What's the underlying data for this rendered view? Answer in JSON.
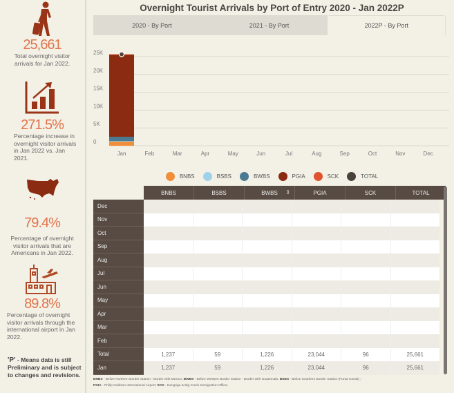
{
  "sidebar": {
    "stats": [
      {
        "icon": "traveler-luggage-icon",
        "value": "25,661",
        "desc": "Total overnight visitor arrivals for Jan 2022."
      },
      {
        "icon": "growth-chart-icon",
        "value": "271.5%",
        "desc": "Percentage increase in overnight visitor arrivals in Jan 2022 vs. Jan 2021."
      },
      {
        "icon": "usa-map-icon",
        "value": "79.4%",
        "desc": "Percentage of overnight visitor arrivals that are Americans in Jan 2022."
      },
      {
        "icon": "airport-icon",
        "value": "89.8%",
        "desc": "Percentage of overnight visitor arrivals through the international airport in Jan 2022."
      }
    ],
    "note_p": "'P'",
    "note_text": " - Means data is still Preliminary and is subject to changes and revisions."
  },
  "title": "Overnight Tourist Arrivals by Port of Entry 2020 - Jan 2022P",
  "tabs": [
    {
      "label": "2020 - By Port",
      "active": false
    },
    {
      "label": "2021 - By Port",
      "active": false
    },
    {
      "label": "2022P - By Port",
      "active": true
    }
  ],
  "colors": {
    "BNBS": "#f28e3a",
    "BSBS": "#9fd2ea",
    "BWBS": "#4b7b93",
    "PGIA": "#8b2b12",
    "SCK": "#e0532e",
    "TOTAL": "#4a413c"
  },
  "chart_data": {
    "type": "bar",
    "stacked": true,
    "categories": [
      "Jan",
      "Feb",
      "Mar",
      "Apr",
      "May",
      "Jun",
      "Jul",
      "Aug",
      "Sep",
      "Oct",
      "Nov",
      "Dec"
    ],
    "series": [
      {
        "name": "BNBS",
        "values": [
          1237,
          null,
          null,
          null,
          null,
          null,
          null,
          null,
          null,
          null,
          null,
          null
        ]
      },
      {
        "name": "BSBS",
        "values": [
          59,
          null,
          null,
          null,
          null,
          null,
          null,
          null,
          null,
          null,
          null,
          null
        ]
      },
      {
        "name": "BWBS",
        "values": [
          1226,
          null,
          null,
          null,
          null,
          null,
          null,
          null,
          null,
          null,
          null,
          null
        ]
      },
      {
        "name": "PGIA",
        "values": [
          23044,
          null,
          null,
          null,
          null,
          null,
          null,
          null,
          null,
          null,
          null,
          null
        ]
      },
      {
        "name": "SCK",
        "values": [
          96,
          null,
          null,
          null,
          null,
          null,
          null,
          null,
          null,
          null,
          null,
          null
        ]
      }
    ],
    "total": {
      "name": "TOTAL",
      "type": "point",
      "values": [
        25661,
        null,
        null,
        null,
        null,
        null,
        null,
        null,
        null,
        null,
        null,
        null
      ]
    },
    "yticks": [
      0,
      5000,
      10000,
      15000,
      20000,
      25000
    ],
    "ytick_labels": [
      "0",
      "5K",
      "10K",
      "15K",
      "20K",
      "25K"
    ],
    "ylim": [
      0,
      27000
    ],
    "grid": true,
    "legend": [
      "BNBS",
      "BSBS",
      "BWBS",
      "PGIA",
      "SCK",
      "TOTAL"
    ],
    "legend_position": "bottom"
  },
  "table": {
    "columns": [
      "BNBS",
      "BSBS",
      "BWBS",
      "PGIA",
      "SCK",
      "TOTAL"
    ],
    "rows": [
      {
        "label": "Dec",
        "values": [
          "",
          "",
          "",
          "",
          "",
          ""
        ]
      },
      {
        "label": "Nov",
        "values": [
          "",
          "",
          "",
          "",
          "",
          ""
        ]
      },
      {
        "label": "Oct",
        "values": [
          "",
          "",
          "",
          "",
          "",
          ""
        ]
      },
      {
        "label": "Sep",
        "values": [
          "",
          "",
          "",
          "",
          "",
          ""
        ]
      },
      {
        "label": "Aug",
        "values": [
          "",
          "",
          "",
          "",
          "",
          ""
        ]
      },
      {
        "label": "Jul",
        "values": [
          "",
          "",
          "",
          "",
          "",
          ""
        ]
      },
      {
        "label": "Jun",
        "values": [
          "",
          "",
          "",
          "",
          "",
          ""
        ]
      },
      {
        "label": "May",
        "values": [
          "",
          "",
          "",
          "",
          "",
          ""
        ]
      },
      {
        "label": "Apr",
        "values": [
          "",
          "",
          "",
          "",
          "",
          ""
        ]
      },
      {
        "label": "Mar",
        "values": [
          "",
          "",
          "",
          "",
          "",
          ""
        ]
      },
      {
        "label": "Feb",
        "values": [
          "",
          "",
          "",
          "",
          "",
          ""
        ]
      },
      {
        "label": "Total",
        "values": [
          "1,237",
          "59",
          "1,226",
          "23,044",
          "96",
          "25,661"
        ]
      },
      {
        "label": "Jan",
        "values": [
          "1,237",
          "59",
          "1,226",
          "23,044",
          "96",
          "25,661"
        ]
      }
    ]
  },
  "footnote": [
    {
      "abbr": "BNBS",
      "text": " - Belize Northern Border Station - Border with Mexico;  "
    },
    {
      "abbr": "BWBS",
      "text": " - Belize Western Border Station - Border with Guatemala; "
    },
    {
      "abbr": "BSBS",
      "text": " - Belize Southern Border Station (Punta Gorda) ;"
    },
    {
      "abbr": "PGIA",
      "text": " - Philip Goldson International Airport; "
    },
    {
      "abbr": "SCK",
      "text": " - Dangriga & Big Creek Immigration Office;"
    }
  ]
}
